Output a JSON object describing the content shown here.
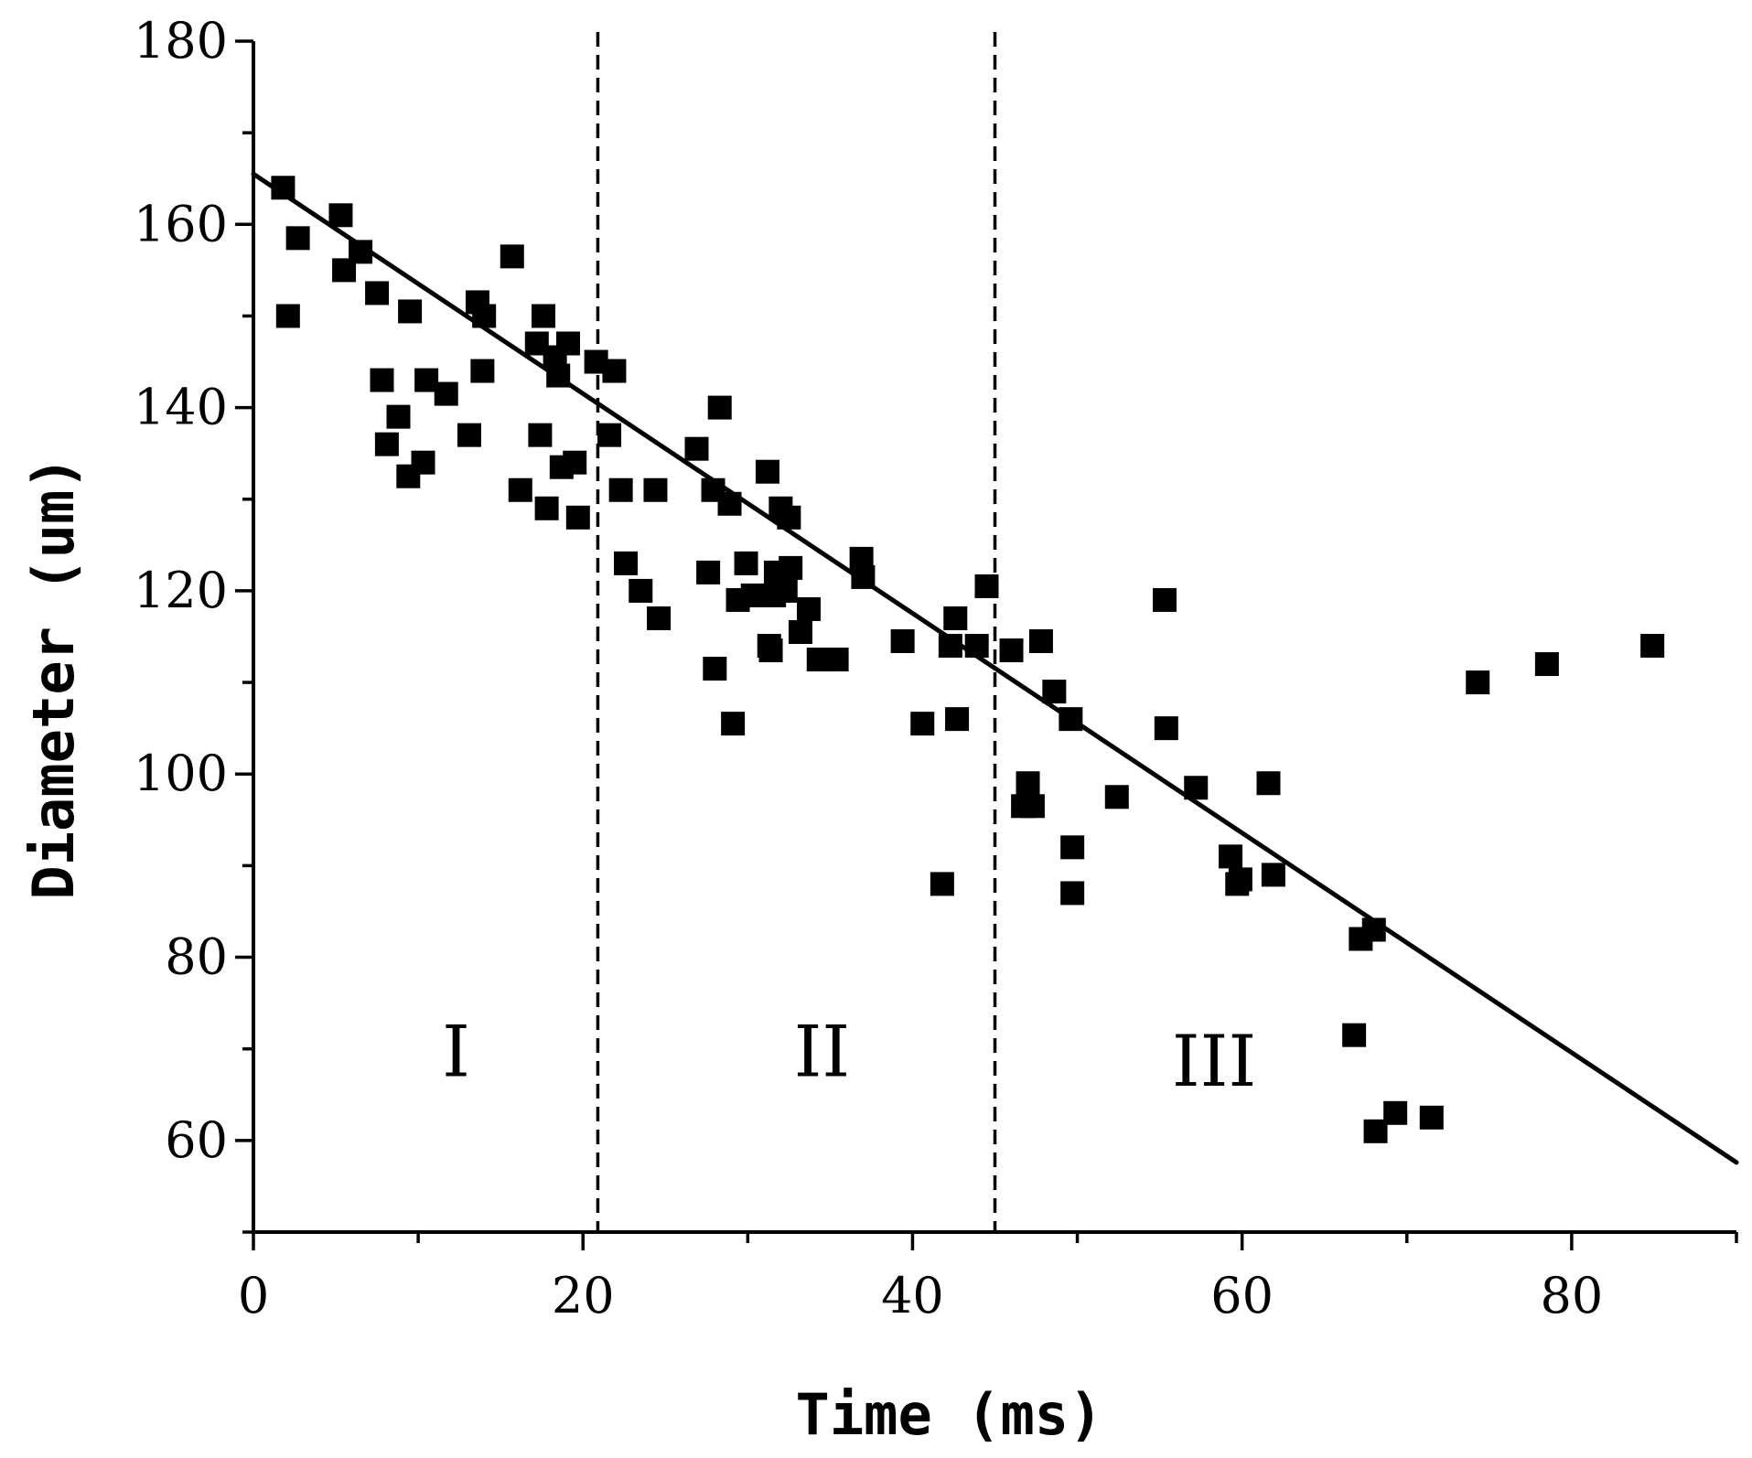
{
  "chart_data": {
    "type": "scatter",
    "title": "",
    "xlabel": "Time (ms)",
    "ylabel": "Diameter (um)",
    "xlim": [
      0,
      90
    ],
    "ylim": [
      50,
      180
    ],
    "xticks": [
      0,
      20,
      40,
      60,
      80
    ],
    "yticks": [
      60,
      80,
      100,
      120,
      140,
      160,
      180
    ],
    "x_minor_step": 10,
    "y_minor_step": 10,
    "grid": false,
    "region_boundaries": [
      20.9,
      45.0
    ],
    "regions": [
      {
        "label": "I",
        "x": 12.3,
        "y": 67
      },
      {
        "label": "II",
        "x": 34.5,
        "y": 67
      },
      {
        "label": "III",
        "x": 58.3,
        "y": 66
      }
    ],
    "fit_line": {
      "x": [
        0,
        90
      ],
      "y": [
        165.5,
        57.6
      ]
    },
    "series": [
      {
        "name": "Diameter",
        "marker": "square",
        "x": [
          1.8,
          2.1,
          2.7,
          5.3,
          5.5,
          6.5,
          7.5,
          7.8,
          8.1,
          8.8,
          9.4,
          9.5,
          10.3,
          10.5,
          11.7,
          13.1,
          13.6,
          13.9,
          14.0,
          15.7,
          16.2,
          17.2,
          17.4,
          17.6,
          17.8,
          18.3,
          18.5,
          18.7,
          19.1,
          19.5,
          19.7,
          20.8,
          21.6,
          21.9,
          22.3,
          22.6,
          23.5,
          24.4,
          24.6,
          26.9,
          27.6,
          27.9,
          28.0,
          28.3,
          28.9,
          29.1,
          29.4,
          29.9,
          30.3,
          31.2,
          31.3,
          31.4,
          31.6,
          31.7,
          32.0,
          32.3,
          32.5,
          32.6,
          33.2,
          33.7,
          34.3,
          35.4,
          36.9,
          37.0,
          39.4,
          40.6,
          41.8,
          42.3,
          42.6,
          42.7,
          43.9,
          44.5,
          46.0,
          46.7,
          47.0,
          47.3,
          47.8,
          48.6,
          49.6,
          49.7,
          49.7,
          52.4,
          55.3,
          55.4,
          57.2,
          59.3,
          59.7,
          59.9,
          61.6,
          61.9,
          66.8,
          67.2,
          68.0,
          68.1,
          69.3,
          71.5,
          74.3,
          78.5,
          84.9
        ],
        "y": [
          164.0,
          150.0,
          158.5,
          161.0,
          155.0,
          157.0,
          152.5,
          143.0,
          136.0,
          139.0,
          132.5,
          150.5,
          134.0,
          143.0,
          141.5,
          137.0,
          151.5,
          144.0,
          150.0,
          156.5,
          131.0,
          147.0,
          137.0,
          150.0,
          129.0,
          145.5,
          143.5,
          133.5,
          147.0,
          134.0,
          128.0,
          145.0,
          137.0,
          144.0,
          131.0,
          123.0,
          120.0,
          131.0,
          117.0,
          135.5,
          122.0,
          131.0,
          111.5,
          140.0,
          129.5,
          105.5,
          119.0,
          123.0,
          119.5,
          133.0,
          114.0,
          113.5,
          119.5,
          122.0,
          129.0,
          120.0,
          128.0,
          122.5,
          115.5,
          118.0,
          112.5,
          112.5,
          123.5,
          121.5,
          114.5,
          105.5,
          88.0,
          114.0,
          117.0,
          106.0,
          114.0,
          120.5,
          113.5,
          96.5,
          99.0,
          96.5,
          114.5,
          109.0,
          106.0,
          92.0,
          87.0,
          97.5,
          119.0,
          105.0,
          98.5,
          91.0,
          88.0,
          88.5,
          99.0,
          89.0,
          71.5,
          82.0,
          83.0,
          61.0,
          63.0,
          62.5,
          110.0,
          112.0,
          114.0
        ]
      }
    ]
  }
}
